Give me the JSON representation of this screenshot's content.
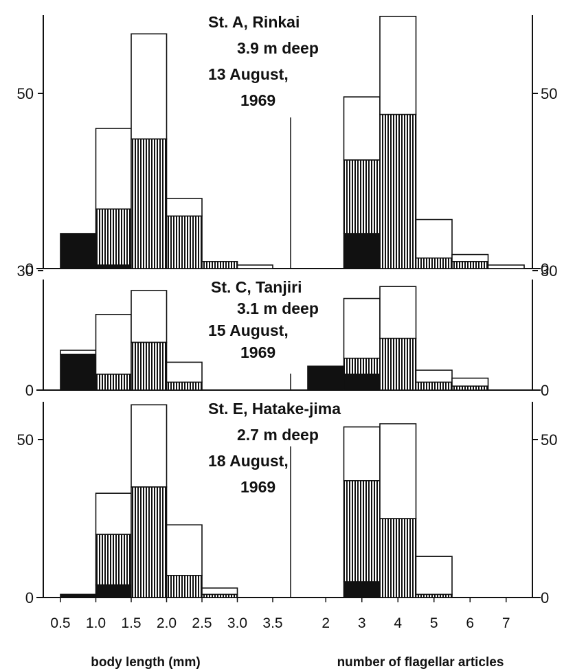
{
  "colors": {
    "black": "#111111",
    "white": "#ffffff",
    "hatch": "#111111"
  },
  "chart_data": {
    "type": "bar",
    "subtype": "stacked-histogram",
    "left_xlabel": "body length  (mm)",
    "right_xlabel": "number of flagellar articles",
    "left_bin_edges": [
      0.5,
      1.0,
      1.5,
      2.0,
      2.5,
      3.0,
      3.5
    ],
    "left_tick_labels": [
      "0.5",
      "1.0",
      "1.5",
      "2.0",
      "2.5",
      "3.0",
      "3.5"
    ],
    "right_categories": [
      "2",
      "3",
      "4",
      "5",
      "6",
      "7"
    ],
    "fill_legend": [
      "black",
      "hatched",
      "open"
    ],
    "panels": [
      {
        "title_lines": [
          "St. A,  Rinkai",
          "3.9 m deep",
          "13  August,",
          "1969"
        ],
        "ylim": [
          0,
          70
        ],
        "yticks": [
          0,
          50
        ],
        "left": {
          "black": [
            10,
            1,
            0,
            0,
            0,
            0
          ],
          "hatched": [
            0,
            16,
            37,
            15,
            2,
            0
          ],
          "open": [
            0,
            23,
            30,
            5,
            0,
            1
          ]
        },
        "right": {
          "black": [
            0,
            10,
            0,
            0,
            0,
            0
          ],
          "hatched": [
            0,
            21,
            44,
            3,
            2,
            0
          ],
          "open": [
            0,
            18,
            28,
            11,
            2,
            1
          ]
        }
      },
      {
        "title_lines": [
          "St. C,  Tanjiri",
          "3.1 m deep",
          "15  August,",
          "1969"
        ],
        "ylim": [
          0,
          30
        ],
        "yticks": [
          0,
          30
        ],
        "left": {
          "black": [
            9,
            0,
            0,
            0,
            0,
            0
          ],
          "hatched": [
            0,
            4,
            12,
            2,
            0,
            0
          ],
          "open": [
            1,
            15,
            13,
            5,
            0,
            0
          ]
        },
        "right": {
          "black": [
            6,
            4,
            0,
            0,
            0,
            0
          ],
          "hatched": [
            0,
            4,
            13,
            2,
            1,
            0
          ],
          "open": [
            0,
            15,
            13,
            3,
            2,
            0
          ]
        }
      },
      {
        "title_lines": [
          "St. E,  Hatake-jima",
          "2.7 m deep",
          "18  August,",
          "1969"
        ],
        "ylim": [
          0,
          62
        ],
        "yticks": [
          0,
          50
        ],
        "left": {
          "black": [
            1,
            4,
            0,
            0,
            0,
            0
          ],
          "hatched": [
            0,
            16,
            35,
            7,
            1,
            0
          ],
          "open": [
            0,
            13,
            26,
            16,
            2,
            0
          ]
        },
        "right": {
          "black": [
            0,
            5,
            0,
            0,
            0,
            0
          ],
          "hatched": [
            0,
            32,
            25,
            1,
            0,
            0
          ],
          "open": [
            0,
            17,
            30,
            12,
            0,
            0
          ]
        }
      }
    ]
  }
}
